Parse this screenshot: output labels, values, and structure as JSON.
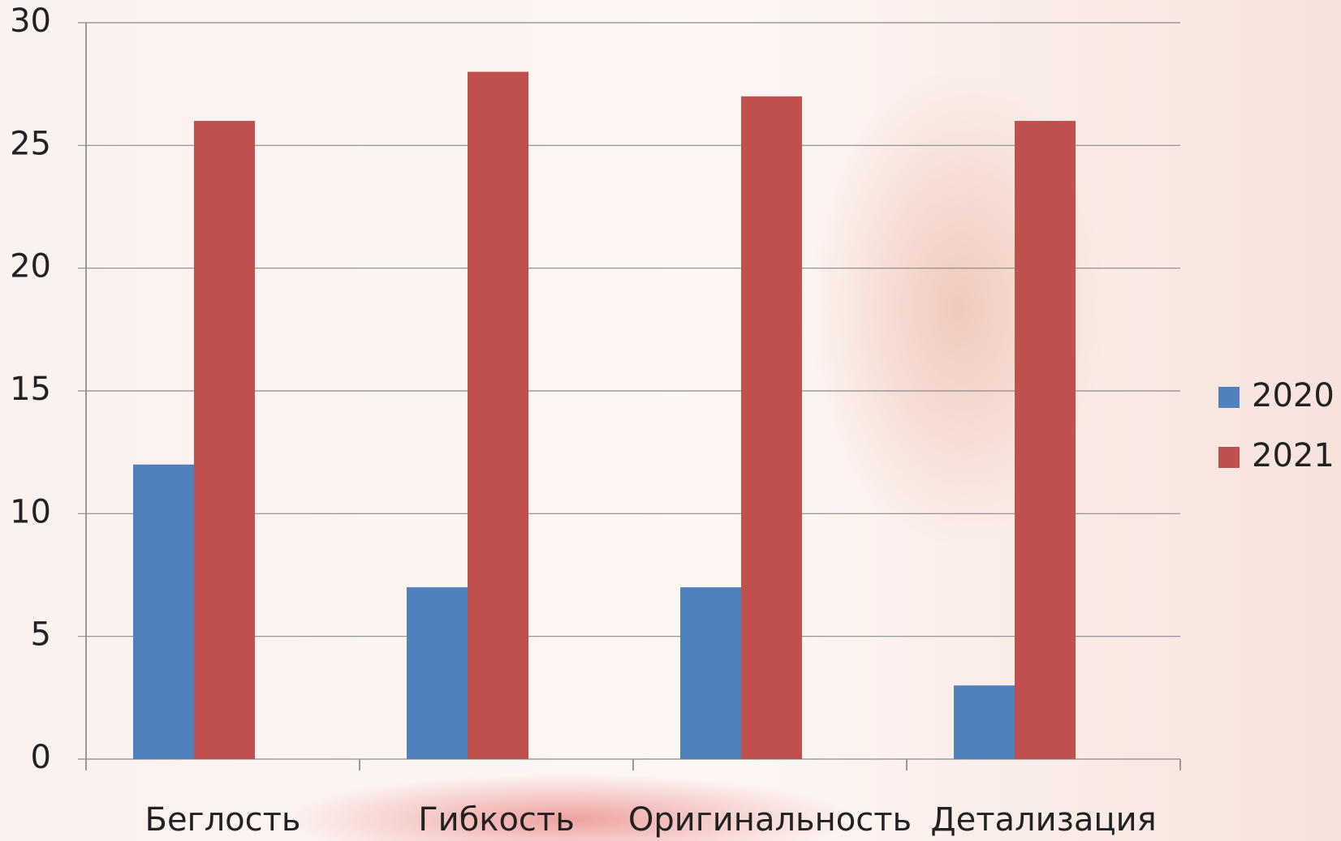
{
  "chart_data": {
    "type": "bar",
    "categories": [
      "Беглость",
      "Гибкость",
      "Оригинальность",
      "Детализация"
    ],
    "series": [
      {
        "name": "2020",
        "color": "#4f81bd",
        "values": [
          12,
          7,
          7,
          3
        ]
      },
      {
        "name": "2021",
        "color": "#c0504d",
        "values": [
          26,
          28,
          27,
          26
        ]
      }
    ],
    "ylim": [
      0,
      30
    ],
    "yticks": [
      0,
      5,
      10,
      15,
      20,
      25,
      30
    ],
    "grid": true,
    "legend": "right"
  }
}
